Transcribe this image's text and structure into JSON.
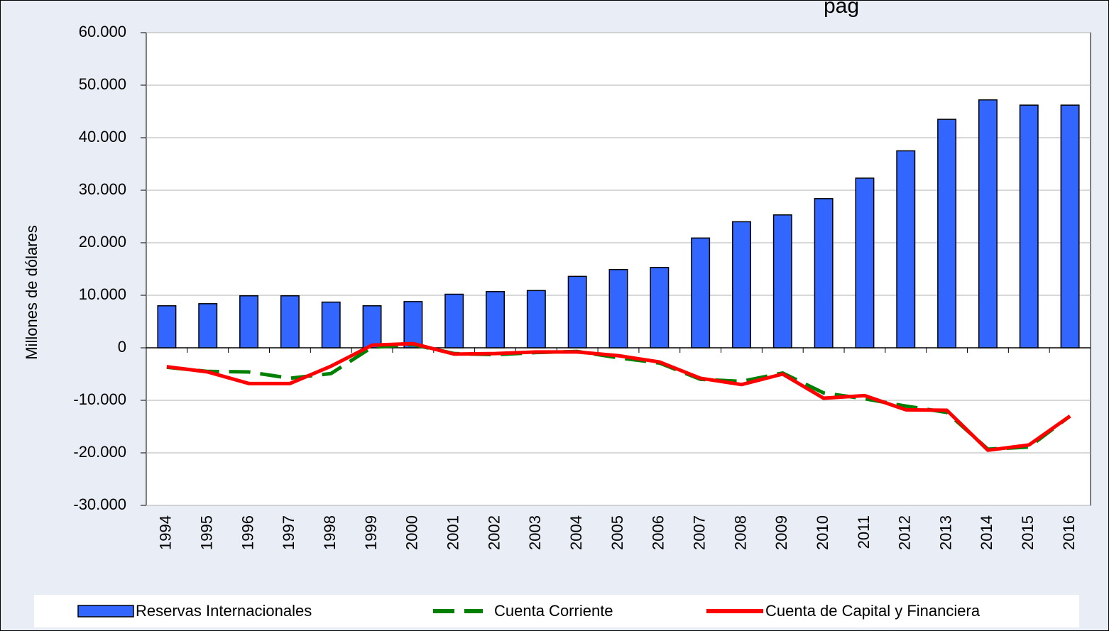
{
  "header_fragment": "pág",
  "chart_data": {
    "type": "bar_line",
    "y_label": "Millones de dólares",
    "categories": [
      "1994",
      "1995",
      "1996",
      "1997",
      "1998",
      "1999",
      "2000",
      "2001",
      "2002",
      "2003",
      "2004",
      "2005",
      "2006",
      "2007",
      "2008",
      "2009",
      "2010",
      "2011",
      "2012",
      "2013",
      "2014",
      "2015",
      "2016"
    ],
    "series": [
      {
        "name": "Reservas Internacionales",
        "type": "bar",
        "color": "#3366ff",
        "values": [
          8000,
          8400,
          9900,
          9900,
          8700,
          8000,
          8800,
          10200,
          10700,
          10900,
          13600,
          14900,
          15300,
          20900,
          24000,
          25300,
          28400,
          32300,
          37500,
          43500,
          47200,
          46200,
          46200
        ]
      },
      {
        "name": "Cuenta Corriente",
        "type": "line",
        "dashed": true,
        "color": "#008000",
        "values": [
          -3700,
          -4500,
          -4600,
          -5800,
          -4900,
          100,
          600,
          -1100,
          -1300,
          -900,
          -700,
          -1900,
          -2900,
          -6000,
          -6400,
          -4800,
          -8600,
          -9700,
          -11100,
          -12300,
          -19300,
          -18900,
          -13000
        ]
      },
      {
        "name": "Cuenta de Capital y Financiera",
        "type": "line",
        "dashed": false,
        "color": "#ff0000",
        "values": [
          -3600,
          -4600,
          -6800,
          -6800,
          -3500,
          500,
          800,
          -1200,
          -1100,
          -800,
          -800,
          -1500,
          -2700,
          -5800,
          -7000,
          -5000,
          -9600,
          -9100,
          -11800,
          -11900,
          -19500,
          -18500,
          -13000
        ]
      }
    ],
    "ylim": [
      -30000,
      60000
    ],
    "yticks": [
      {
        "value": -30000,
        "label": "-30.000"
      },
      {
        "value": -20000,
        "label": "-20.000"
      },
      {
        "value": -10000,
        "label": "-10.000"
      },
      0,
      {
        "value": 10000,
        "label": "10.000"
      },
      {
        "value": 20000,
        "label": "20.000"
      },
      {
        "value": 30000,
        "label": "30.000"
      },
      {
        "value": 40000,
        "label": "40.000"
      },
      {
        "value": 50000,
        "label": "50.000"
      },
      {
        "value": 60000,
        "label": "60.000"
      }
    ],
    "grid": true,
    "legend": "bottom"
  }
}
